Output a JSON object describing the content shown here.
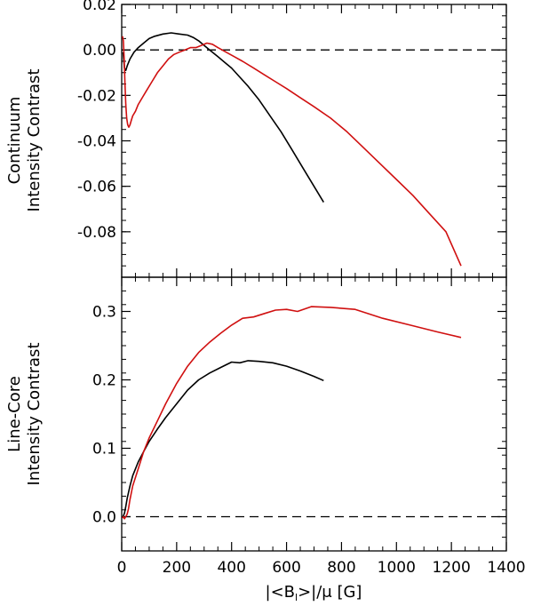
{
  "chart_data": [
    {
      "type": "line",
      "name": "top-panel",
      "ylabel_line1": "Continuum",
      "ylabel_line2": "Intensity Contrast",
      "xlim": [
        0,
        1400
      ],
      "ylim": [
        -0.1,
        0.02
      ],
      "yticks": [
        0.02,
        0.0,
        -0.02,
        -0.04,
        -0.06,
        -0.08
      ],
      "ytick_labels": [
        "0.02",
        "0.00",
        "-0.02",
        "-0.04",
        "-0.06",
        "-0.08"
      ],
      "reference_line": 0.0,
      "series": [
        {
          "name": "black",
          "color": "#000000",
          "x": [
            5,
            10,
            15,
            20,
            30,
            45,
            60,
            80,
            100,
            120,
            150,
            180,
            210,
            240,
            260,
            280,
            300,
            320,
            350,
            380,
            400,
            430,
            460,
            500,
            540,
            580,
            620,
            660,
            700,
            735
          ],
          "y": [
            -0.001,
            -0.008,
            -0.009,
            -0.007,
            -0.004,
            -0.001,
            0.001,
            0.003,
            0.005,
            0.006,
            0.007,
            0.0075,
            0.007,
            0.0065,
            0.0055,
            0.004,
            0.002,
            0.0,
            -0.003,
            -0.006,
            -0.008,
            -0.012,
            -0.016,
            -0.022,
            -0.029,
            -0.036,
            -0.044,
            -0.052,
            -0.06,
            -0.067
          ]
        },
        {
          "name": "red",
          "color": "#d01010",
          "x": [
            3,
            6,
            9,
            12,
            15,
            18,
            22,
            26,
            30,
            35,
            40,
            50,
            60,
            75,
            90,
            110,
            130,
            150,
            170,
            190,
            210,
            230,
            250,
            270,
            290,
            310,
            330,
            350,
            380,
            410,
            440,
            480,
            520,
            560,
            600,
            650,
            700,
            760,
            820,
            880,
            940,
            1000,
            1060,
            1120,
            1180,
            1235
          ],
          "y": [
            0.006,
            0.004,
            -0.004,
            -0.015,
            -0.024,
            -0.03,
            -0.033,
            -0.034,
            -0.033,
            -0.031,
            -0.029,
            -0.027,
            -0.024,
            -0.021,
            -0.018,
            -0.014,
            -0.01,
            -0.007,
            -0.004,
            -0.002,
            -0.001,
            0.0,
            0.001,
            0.001,
            0.002,
            0.003,
            0.0025,
            0.001,
            -0.001,
            -0.003,
            -0.005,
            -0.008,
            -0.011,
            -0.014,
            -0.017,
            -0.021,
            -0.025,
            -0.03,
            -0.036,
            -0.043,
            -0.05,
            -0.057,
            -0.064,
            -0.072,
            -0.08,
            -0.095
          ]
        }
      ]
    },
    {
      "type": "line",
      "name": "bottom-panel",
      "ylabel_line1": "Line-Core",
      "ylabel_line2": "Intensity Contrast",
      "xlabel": "|<B",
      "xlabel_sub": "l",
      "xlabel_tail": ">|/μ  [G]",
      "xlim": [
        0,
        1400
      ],
      "ylim": [
        -0.05,
        0.35
      ],
      "yticks": [
        0.0,
        0.1,
        0.2,
        0.3
      ],
      "ytick_labels": [
        "0.0",
        "0.1",
        "0.2",
        "0.3"
      ],
      "xticks": [
        0,
        200,
        400,
        600,
        800,
        1000,
        1200,
        1400
      ],
      "xtick_labels": [
        "0",
        "200",
        "400",
        "600",
        "800",
        "1000",
        "1200",
        "1400"
      ],
      "reference_line": 0.0,
      "series": [
        {
          "name": "black",
          "color": "#000000",
          "x": [
            5,
            10,
            15,
            20,
            30,
            40,
            60,
            80,
            100,
            130,
            160,
            200,
            240,
            280,
            320,
            360,
            400,
            430,
            460,
            500,
            550,
            600,
            650,
            700,
            735
          ],
          "y": [
            0.0,
            0.005,
            0.015,
            0.027,
            0.045,
            0.06,
            0.08,
            0.095,
            0.11,
            0.128,
            0.145,
            0.165,
            0.185,
            0.2,
            0.21,
            0.218,
            0.226,
            0.225,
            0.228,
            0.227,
            0.225,
            0.22,
            0.213,
            0.205,
            0.199
          ]
        },
        {
          "name": "red",
          "color": "#d01010",
          "x": [
            3,
            6,
            10,
            15,
            20,
            25,
            30,
            40,
            60,
            80,
            100,
            130,
            160,
            200,
            240,
            280,
            320,
            360,
            400,
            440,
            480,
            520,
            560,
            600,
            640,
            690,
            760,
            850,
            950,
            1050,
            1150,
            1235
          ],
          "y": [
            -0.002,
            0.0,
            -0.003,
            0.0,
            0.004,
            0.012,
            0.025,
            0.045,
            0.07,
            0.095,
            0.115,
            0.14,
            0.165,
            0.195,
            0.22,
            0.24,
            0.255,
            0.268,
            0.28,
            0.29,
            0.292,
            0.297,
            0.302,
            0.303,
            0.3,
            0.307,
            0.306,
            0.303,
            0.29,
            0.28,
            0.27,
            0.262
          ]
        }
      ]
    }
  ]
}
